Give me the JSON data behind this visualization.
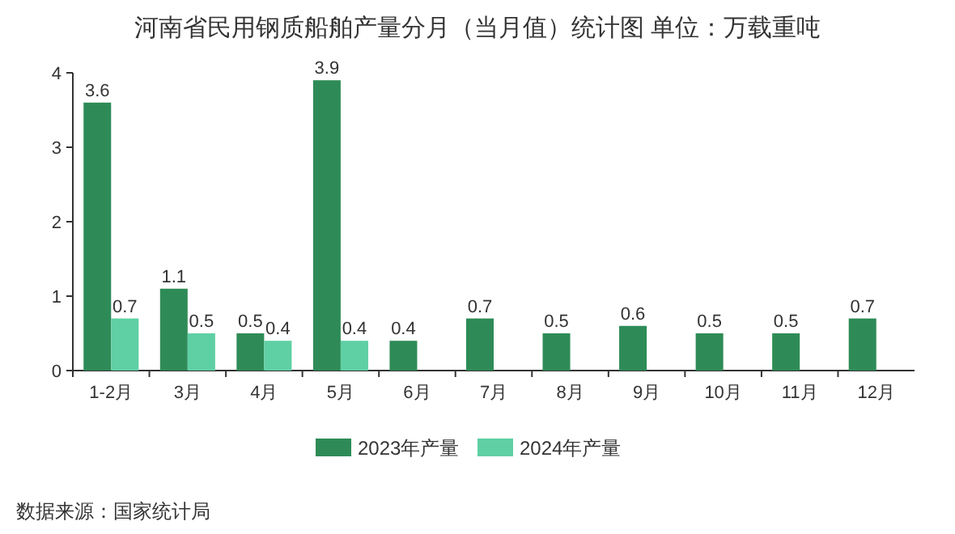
{
  "chart_data": {
    "type": "bar",
    "title": "河南省民用钢质船舶产量分月（当月值）统计图 单位：万载重吨",
    "categories": [
      "1-2月",
      "3月",
      "4月",
      "5月",
      "6月",
      "7月",
      "8月",
      "9月",
      "10月",
      "11月",
      "12月"
    ],
    "series": [
      {
        "name": "2023年产量",
        "color": "#2e8b57",
        "values": [
          3.6,
          1.1,
          0.5,
          3.9,
          0.4,
          0.7,
          0.5,
          0.6,
          0.5,
          0.5,
          0.7
        ]
      },
      {
        "name": "2024年产量",
        "color": "#5fcfa4",
        "values": [
          0.7,
          0.5,
          0.4,
          0.4,
          null,
          null,
          null,
          null,
          null,
          null,
          null
        ]
      }
    ],
    "ylim": [
      0,
      4
    ],
    "yticks": [
      0,
      1,
      2,
      3,
      4
    ],
    "data_labels": true,
    "legend": "bottom",
    "annotations": [
      "数据来源：国家统计局"
    ]
  }
}
